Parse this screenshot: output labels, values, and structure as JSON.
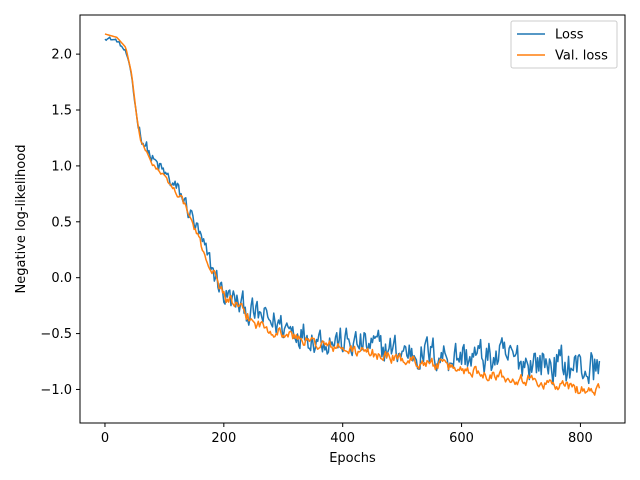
{
  "chart_data": {
    "type": "line",
    "xlabel": "Epochs",
    "ylabel": "Negative log-likelihood",
    "xlim": [
      -42,
      875
    ],
    "ylim": [
      -1.3,
      2.35
    ],
    "x_ticks": [
      0,
      200,
      400,
      600,
      800
    ],
    "y_ticks": [
      -1.0,
      -0.5,
      0.0,
      0.5,
      1.0,
      1.5,
      2.0
    ],
    "x_tick_labels": [
      "0",
      "200",
      "400",
      "600",
      "800"
    ],
    "y_tick_labels": [
      "−1.0",
      "−0.5",
      "0.0",
      "0.5",
      "1.0",
      "1.5",
      "2.0"
    ],
    "grid": false,
    "legend_position": "top-right",
    "x_max": 832,
    "series": [
      {
        "name": "Loss",
        "color": "#1f77b4",
        "noise_amplitude": [
          [
            0,
            0.03
          ],
          [
            40,
            0.03
          ],
          [
            60,
            0.1
          ],
          [
            150,
            0.15
          ],
          [
            200,
            0.2
          ],
          [
            400,
            0.22
          ],
          [
            600,
            0.25
          ],
          [
            832,
            0.28
          ]
        ],
        "trend": [
          [
            0,
            2.15
          ],
          [
            20,
            2.12
          ],
          [
            35,
            2.02
          ],
          [
            45,
            1.8
          ],
          [
            52,
            1.5
          ],
          [
            60,
            1.28
          ],
          [
            80,
            1.05
          ],
          [
            100,
            0.93
          ],
          [
            130,
            0.72
          ],
          [
            150,
            0.5
          ],
          [
            170,
            0.2
          ],
          [
            200,
            -0.15
          ],
          [
            250,
            -0.33
          ],
          [
            300,
            -0.43
          ],
          [
            350,
            -0.52
          ],
          [
            400,
            -0.58
          ],
          [
            450,
            -0.62
          ],
          [
            500,
            -0.66
          ],
          [
            550,
            -0.68
          ],
          [
            600,
            -0.7
          ],
          [
            650,
            -0.72
          ],
          [
            700,
            -0.74
          ],
          [
            750,
            -0.77
          ],
          [
            800,
            -0.8
          ],
          [
            832,
            -0.82
          ]
        ]
      },
      {
        "name": "Val. loss",
        "color": "#ff7f0e",
        "noise_amplitude": [
          [
            0,
            0.0
          ],
          [
            40,
            0.0
          ],
          [
            60,
            0.02
          ],
          [
            150,
            0.05
          ],
          [
            200,
            0.08
          ],
          [
            400,
            0.08
          ],
          [
            600,
            0.08
          ],
          [
            832,
            0.09
          ]
        ],
        "trend": [
          [
            0,
            2.18
          ],
          [
            20,
            2.15
          ],
          [
            35,
            2.06
          ],
          [
            45,
            1.82
          ],
          [
            52,
            1.5
          ],
          [
            60,
            1.22
          ],
          [
            80,
            1.02
          ],
          [
            100,
            0.9
          ],
          [
            130,
            0.7
          ],
          [
            150,
            0.45
          ],
          [
            170,
            0.18
          ],
          [
            200,
            -0.15
          ],
          [
            250,
            -0.4
          ],
          [
            300,
            -0.5
          ],
          [
            350,
            -0.58
          ],
          [
            400,
            -0.64
          ],
          [
            450,
            -0.68
          ],
          [
            500,
            -0.73
          ],
          [
            550,
            -0.77
          ],
          [
            600,
            -0.82
          ],
          [
            650,
            -0.86
          ],
          [
            700,
            -0.9
          ],
          [
            750,
            -0.95
          ],
          [
            800,
            -1.0
          ],
          [
            832,
            -1.02
          ]
        ]
      }
    ]
  }
}
